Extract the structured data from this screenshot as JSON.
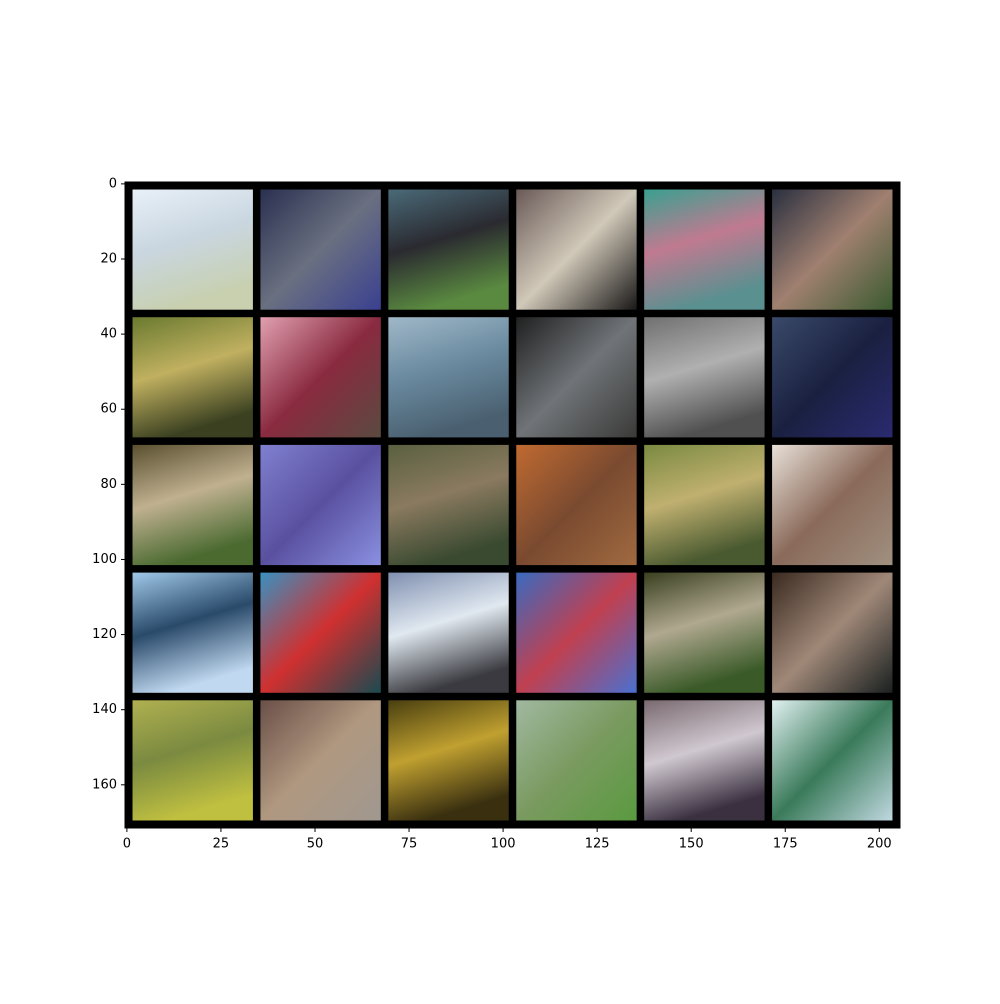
{
  "chart_data": {
    "type": "image",
    "xlim": [
      -0.5,
      205.5
    ],
    "ylim": [
      171.5,
      -0.5
    ],
    "xticks": [
      0,
      25,
      50,
      75,
      100,
      125,
      150,
      175,
      200
    ],
    "yticks": [
      0,
      20,
      40,
      60,
      80,
      100,
      120,
      140,
      160
    ]
  }
}
